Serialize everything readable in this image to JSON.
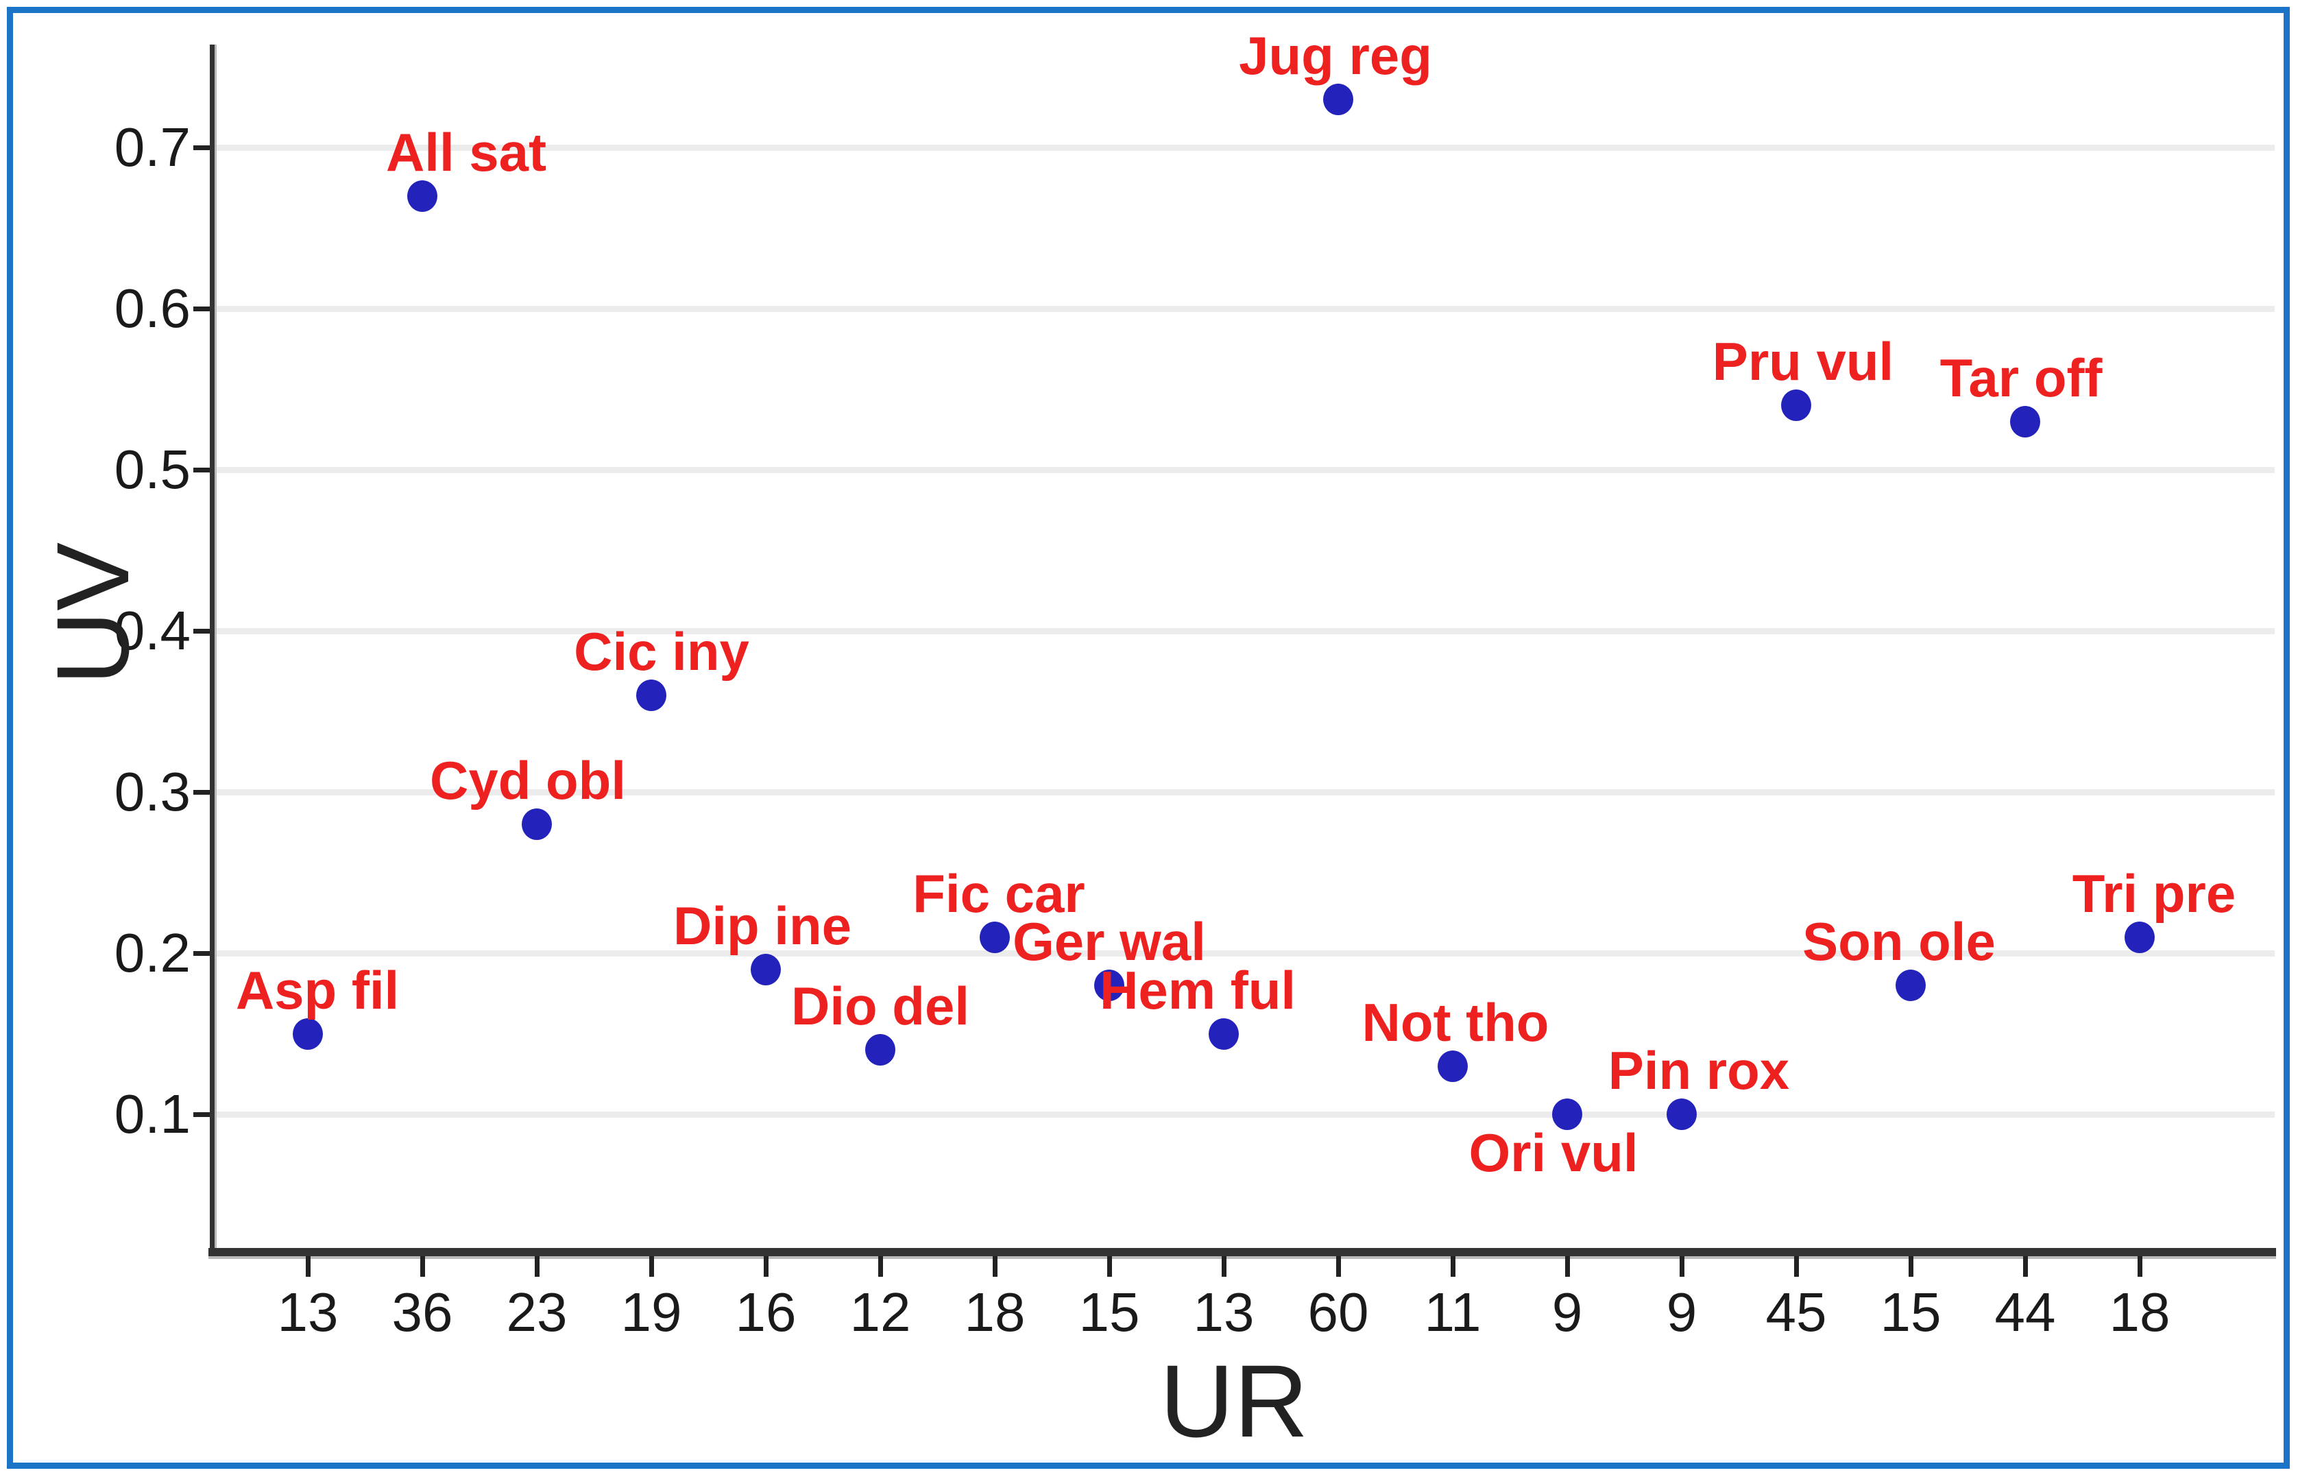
{
  "frame": {
    "border_color": "#1b74c8"
  },
  "styles": {
    "dot_color": "#2323bb",
    "point_label_color": "#ee2121",
    "grid_color": "#ececec",
    "axis_color": "#333333",
    "tick_text_color": "#1a1a1a"
  },
  "chart_data": {
    "type": "scatter",
    "title": "",
    "xlabel": "UR",
    "ylabel": "UV",
    "grid": "horizontal-on",
    "ylim": [
      0.01,
      0.76
    ],
    "yticks": [
      0.1,
      0.2,
      0.3,
      0.4,
      0.5,
      0.6,
      0.7
    ],
    "ytick_labels": [
      "0.1",
      "0.2",
      "0.3",
      "0.4",
      "0.5",
      "0.6",
      "0.7"
    ],
    "x_tick_labels": [
      "13",
      "36",
      "23",
      "19",
      "16",
      "12",
      "18",
      "15",
      "13",
      "60",
      "11",
      "9",
      "9",
      "45",
      "15",
      "44",
      "18"
    ],
    "points": [
      {
        "x_label": "13",
        "species": "Asp fil",
        "uv": 0.15,
        "label_side": "above",
        "label_dx": 14
      },
      {
        "x_label": "36",
        "species": "All sat",
        "uv": 0.67,
        "label_side": "above",
        "label_dx": 64
      },
      {
        "x_label": "23",
        "species": "Cyd obl",
        "uv": 0.28,
        "label_side": "above",
        "label_dx": -13
      },
      {
        "x_label": "19",
        "species": "Cic iny",
        "uv": 0.36,
        "label_side": "above",
        "label_dx": 15
      },
      {
        "x_label": "16",
        "species": "Dip ine",
        "uv": 0.19,
        "label_side": "above",
        "label_dx": -5
      },
      {
        "x_label": "12",
        "species": "Dio del",
        "uv": 0.14,
        "label_side": "above",
        "label_dx": 0
      },
      {
        "x_label": "18",
        "species": "Fic car",
        "uv": 0.21,
        "label_side": "above",
        "label_dx": 6
      },
      {
        "x_label": "15",
        "species": "Ger wal",
        "uv": 0.18,
        "label_side": "above",
        "label_dx": 0
      },
      {
        "x_label": "13",
        "species": "Hem ful",
        "uv": 0.15,
        "label_side": "above",
        "label_dx": -38
      },
      {
        "x_label": "60",
        "species": "Jug reg",
        "uv": 0.73,
        "label_side": "above",
        "label_dx": -4
      },
      {
        "x_label": "11",
        "species": "Not tho",
        "uv": 0.13,
        "label_side": "above",
        "label_dx": 4
      },
      {
        "x_label": "9",
        "species": "Ori vul",
        "uv": 0.1,
        "label_side": "below",
        "label_dx": -20
      },
      {
        "x_label": "9",
        "species": "Pin rox",
        "uv": 0.1,
        "label_side": "above",
        "label_dx": 25
      },
      {
        "x_label": "45",
        "species": "Pru vul",
        "uv": 0.54,
        "label_side": "above",
        "label_dx": 10
      },
      {
        "x_label": "15",
        "species": "Son ole",
        "uv": 0.18,
        "label_side": "above",
        "label_dx": -17
      },
      {
        "x_label": "44",
        "species": "Tar off",
        "uv": 0.53,
        "label_side": "above",
        "label_dx": -6
      },
      {
        "x_label": "18",
        "species": "Tri pre",
        "uv": 0.21,
        "label_side": "above",
        "label_dx": 21
      }
    ]
  }
}
